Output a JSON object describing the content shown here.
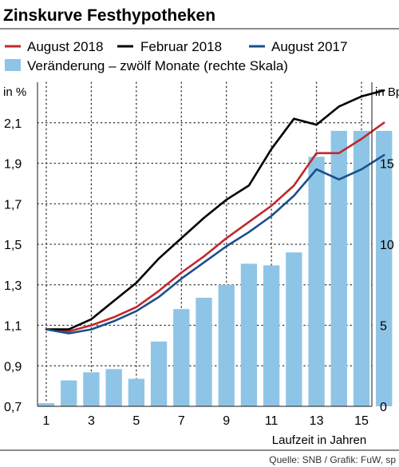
{
  "chart_data": {
    "type": "line",
    "title": "Zinskurve Festhypotheken",
    "x": [
      1,
      2,
      3,
      4,
      5,
      6,
      7,
      8,
      9,
      10,
      11,
      12,
      13,
      14,
      15,
      16
    ],
    "x_ticks": [
      1,
      3,
      5,
      7,
      9,
      11,
      13,
      15
    ],
    "xlabel": "Laufzeit in Jahren",
    "ylabel_left": "in %",
    "ylabel_right": "in Bp",
    "ylim_left": [
      0.7,
      2.3
    ],
    "yticks_left": [
      "0,7",
      "0,9",
      "1,1",
      "1,3",
      "1,5",
      "1,7",
      "1,9",
      "2,1"
    ],
    "ylim_right": [
      0,
      20
    ],
    "yticks_right": [
      "0",
      "5",
      "10",
      "15"
    ],
    "grid": "vertical dotted at odd x, horizontal dotted at left ticks",
    "series": [
      {
        "name": "August 2018",
        "kind": "line",
        "axis": "left",
        "color": "#c0282d",
        "values": [
          1.08,
          1.07,
          1.1,
          1.14,
          1.19,
          1.27,
          1.36,
          1.44,
          1.53,
          1.61,
          1.69,
          1.79,
          1.95,
          1.95,
          2.02,
          2.1
        ]
      },
      {
        "name": "Februar 2018",
        "kind": "line",
        "axis": "left",
        "color": "#000000",
        "values": [
          1.08,
          1.08,
          1.13,
          1.22,
          1.31,
          1.43,
          1.53,
          1.63,
          1.72,
          1.79,
          1.97,
          2.12,
          2.09,
          2.18,
          2.23,
          2.26
        ]
      },
      {
        "name": "August 2017",
        "kind": "line",
        "axis": "left",
        "color": "#1a4f8c",
        "values": [
          1.08,
          1.06,
          1.08,
          1.12,
          1.17,
          1.24,
          1.33,
          1.41,
          1.49,
          1.56,
          1.64,
          1.74,
          1.87,
          1.82,
          1.87,
          1.94
        ]
      },
      {
        "name": "Veränderung – zwölf Monate (rechte Skala)",
        "kind": "bar",
        "axis": "right",
        "color": "#8ec5e6",
        "values": [
          0.2,
          1.6,
          2.1,
          2.3,
          1.7,
          4.0,
          6.0,
          6.7,
          7.5,
          8.8,
          8.7,
          9.5,
          15.4,
          17.0,
          17.0,
          17.0
        ]
      }
    ]
  },
  "footer": {
    "source": "Quelle: SNB / Grafik: FuW, sp"
  }
}
